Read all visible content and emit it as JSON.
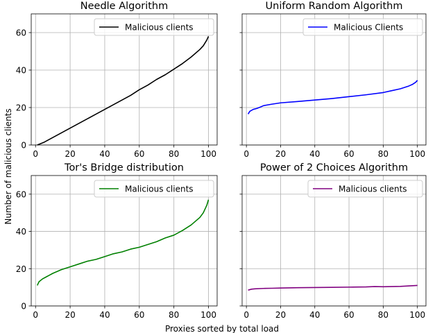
{
  "figure": {
    "ylabel": "Number of malicious clients",
    "xlabel": "Proxies sorted by total load"
  },
  "chart_data": [
    {
      "type": "line",
      "title": "Needle Algorithm",
      "xlim": [
        -2.5,
        105
      ],
      "ylim": [
        0,
        70
      ],
      "xticks": [
        0,
        20,
        40,
        60,
        80,
        100
      ],
      "yticks": [
        0,
        20,
        40,
        60
      ],
      "show_yticklabels": true,
      "grid": true,
      "legend": "top-right",
      "series": [
        {
          "name": "Malicious clients",
          "color": "#000000",
          "x": [
            1,
            5,
            10,
            15,
            20,
            25,
            30,
            35,
            40,
            45,
            50,
            55,
            60,
            65,
            70,
            75,
            80,
            85,
            90,
            95,
            97,
            99,
            100
          ],
          "y": [
            0,
            1.5,
            4,
            6.5,
            9,
            11.5,
            14,
            16.5,
            19,
            21.5,
            24,
            26.5,
            29.5,
            32,
            35,
            37.5,
            40.5,
            43.5,
            47,
            51,
            53,
            56,
            58
          ]
        }
      ]
    },
    {
      "type": "line",
      "title": "Uniform Random Algorithm",
      "xlim": [
        -2.5,
        105
      ],
      "ylim": [
        0,
        70
      ],
      "xticks": [
        0,
        20,
        40,
        60,
        80,
        100
      ],
      "yticks": [
        0,
        20,
        40,
        60
      ],
      "show_yticklabels": false,
      "grid": true,
      "legend": "top-right",
      "series": [
        {
          "name": "Malicious Clients",
          "color": "#0000ff",
          "x": [
            1,
            2,
            4,
            6,
            8,
            10,
            15,
            20,
            30,
            40,
            50,
            60,
            70,
            80,
            85,
            90,
            95,
            97,
            99,
            100
          ],
          "y": [
            16.5,
            18,
            19,
            19.5,
            20.2,
            21,
            21.8,
            22.5,
            23.2,
            24,
            24.8,
            25.8,
            26.8,
            28,
            29,
            30,
            31.5,
            32.3,
            33.5,
            34.5
          ]
        }
      ]
    },
    {
      "type": "line",
      "title": "Tor's Bridge distribution",
      "xlim": [
        -2.5,
        105
      ],
      "ylim": [
        0,
        70
      ],
      "xticks": [
        0,
        20,
        40,
        60,
        80,
        100
      ],
      "yticks": [
        0,
        20,
        40,
        60
      ],
      "show_yticklabels": true,
      "grid": true,
      "legend": "top-right",
      "series": [
        {
          "name": "Malicious clients",
          "color": "#008000",
          "x": [
            1,
            2,
            4,
            6,
            8,
            10,
            15,
            20,
            25,
            30,
            35,
            40,
            45,
            50,
            55,
            60,
            65,
            70,
            75,
            80,
            85,
            90,
            95,
            97,
            99,
            100
          ],
          "y": [
            11,
            13,
            14.5,
            15.5,
            16.5,
            17.5,
            19.5,
            21,
            22.5,
            24,
            25,
            26.5,
            28,
            29,
            30.5,
            31.5,
            33,
            34.5,
            36.5,
            38,
            40.5,
            43.5,
            47.5,
            50,
            54,
            57
          ]
        }
      ]
    },
    {
      "type": "line",
      "title": "Power of 2 Choices Algorithm",
      "xlim": [
        -2.5,
        105
      ],
      "ylim": [
        0,
        70
      ],
      "xticks": [
        0,
        20,
        40,
        60,
        80,
        100
      ],
      "yticks": [
        0,
        20,
        40,
        60
      ],
      "show_yticklabels": false,
      "grid": true,
      "legend": "top-right",
      "series": [
        {
          "name": "Malicious clients",
          "color": "#800080",
          "x": [
            1,
            3,
            5,
            10,
            15,
            20,
            30,
            40,
            50,
            60,
            70,
            75,
            80,
            90,
            100
          ],
          "y": [
            8.5,
            9,
            9.2,
            9.4,
            9.5,
            9.6,
            9.8,
            9.9,
            10,
            10.1,
            10.2,
            10.4,
            10.3,
            10.5,
            11
          ]
        }
      ]
    }
  ]
}
